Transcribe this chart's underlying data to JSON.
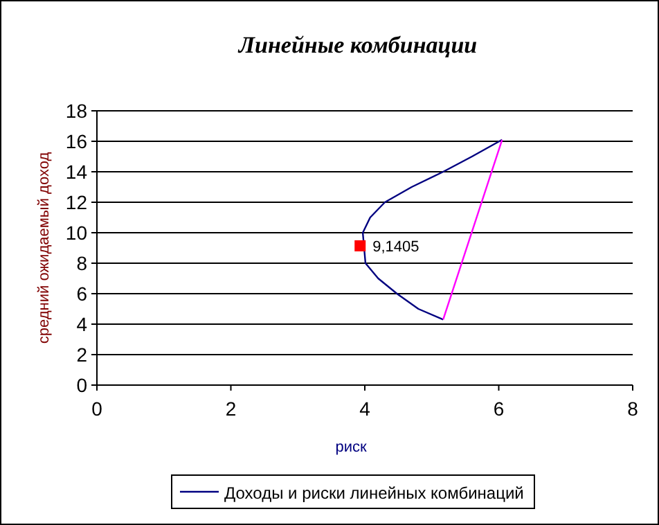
{
  "chart_data": {
    "type": "line",
    "title": "Линейные комбинации",
    "xlabel": "риск",
    "ylabel": "средний ожидаемый доход",
    "xlim": [
      0,
      8
    ],
    "xticks": [
      0,
      2,
      4,
      6,
      8
    ],
    "ylim": [
      0,
      18
    ],
    "yticks": [
      0,
      2,
      4,
      6,
      8,
      10,
      12,
      14,
      16,
      18
    ],
    "grid": "y",
    "legend": "bottom",
    "marker": "none",
    "series": [
      {
        "name": "Доходы и риски линейных комбинаций",
        "color": "#000080",
        "x": [
          6.05,
          5.6,
          5.17,
          4.7,
          4.3,
          4.08,
          3.97,
          4.01,
          4.2,
          4.48,
          4.8,
          5.17
        ],
        "values": [
          16.1,
          15,
          14,
          13,
          12,
          11,
          10,
          8,
          7,
          6,
          5,
          4.3
        ]
      },
      {
        "color": "#ff00ff",
        "x": [
          6.05,
          5.17
        ],
        "values": [
          16.1,
          4.3
        ]
      },
      {
        "type": "scatter",
        "marker": "square",
        "color": "#ff0000",
        "x": [
          3.93
        ],
        "values": [
          9.1405
        ],
        "value_labels": [
          "9,1405"
        ]
      }
    ]
  }
}
